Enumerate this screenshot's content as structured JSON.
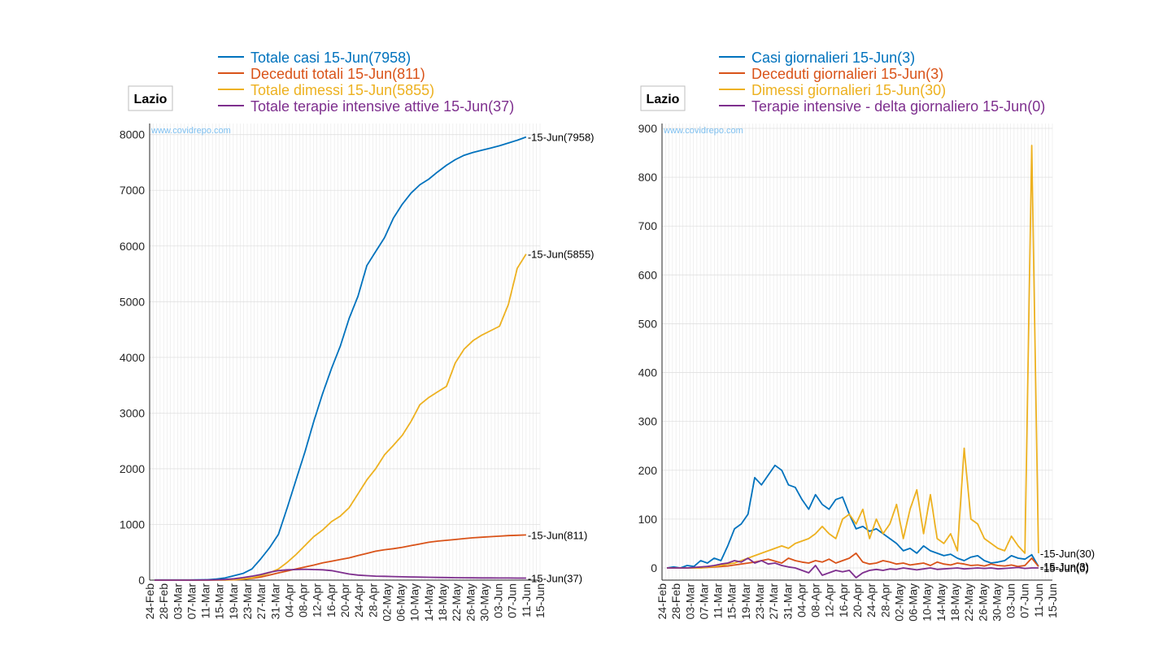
{
  "chart_data": [
    {
      "type": "line",
      "region_label": "Lazio",
      "watermark": "www.covidrepo.com",
      "ylim": [
        0,
        8200
      ],
      "yticks": [
        "0",
        "1000",
        "2000",
        "3000",
        "4000",
        "5000",
        "6000",
        "7000",
        "8000"
      ],
      "x_tick_labels": [
        "24-Feb",
        "28-Feb",
        "03-Mar",
        "07-Mar",
        "11-Mar",
        "15-Mar",
        "19-Mar",
        "23-Mar",
        "27-Mar",
        "31-Mar",
        "04-Apr",
        "08-Apr",
        "12-Apr",
        "16-Apr",
        "20-Apr",
        "24-Apr",
        "28-Apr",
        "02-May",
        "06-May",
        "10-May",
        "14-May",
        "18-May",
        "22-May",
        "26-May",
        "30-May",
        "03-Jun",
        "07-Jun",
        "11-Jun",
        "15-Jun"
      ],
      "grid": true,
      "legend_position": "top",
      "series": [
        {
          "name": "Totale casi 15-Jun(7958)",
          "color": "#0072bd",
          "end_label": "-15-Jun(7958)",
          "values": [
            3,
            3,
            3,
            3,
            3,
            5,
            8,
            20,
            40,
            80,
            120,
            200,
            380,
            580,
            820,
            1300,
            1800,
            2300,
            2850,
            3350,
            3800,
            4200,
            4700,
            5100,
            5650,
            5900,
            6150,
            6500,
            6750,
            6950,
            7100,
            7200,
            7330,
            7450,
            7550,
            7630,
            7680,
            7720,
            7760,
            7800,
            7850,
            7900,
            7958
          ]
        },
        {
          "name": "Deceduti totali 15-Jun(811)",
          "color": "#d95319",
          "end_label": "-15-Jun(811)",
          "values": [
            0,
            0,
            0,
            0,
            0,
            0,
            0,
            1,
            3,
            6,
            15,
            30,
            55,
            90,
            130,
            165,
            200,
            235,
            270,
            310,
            340,
            370,
            400,
            440,
            480,
            520,
            545,
            565,
            590,
            620,
            650,
            680,
            700,
            715,
            730,
            745,
            760,
            770,
            780,
            790,
            800,
            805,
            811
          ]
        },
        {
          "name": "Totale dimessi 15-Jun(5855)",
          "color": "#edb120",
          "end_label": "-15-Jun(5855)",
          "values": [
            0,
            0,
            0,
            0,
            0,
            0,
            0,
            2,
            5,
            10,
            20,
            40,
            80,
            130,
            200,
            320,
            460,
            620,
            780,
            900,
            1050,
            1150,
            1300,
            1550,
            1800,
            2000,
            2250,
            2420,
            2600,
            2850,
            3150,
            3280,
            3380,
            3480,
            3900,
            4150,
            4300,
            4400,
            4480,
            4560,
            4950,
            5600,
            5855
          ]
        },
        {
          "name": "Totale terapie intensive attive 15-Jun(37)",
          "color": "#7e2f8e",
          "end_label": "-15-Jun(37)",
          "values": [
            0,
            0,
            0,
            0,
            0,
            1,
            3,
            6,
            12,
            25,
            45,
            70,
            100,
            140,
            170,
            185,
            190,
            195,
            190,
            185,
            170,
            140,
            110,
            90,
            80,
            72,
            68,
            64,
            60,
            57,
            54,
            51,
            48,
            46,
            44,
            42,
            41,
            40,
            39,
            38,
            38,
            37,
            37
          ]
        }
      ]
    },
    {
      "type": "line",
      "region_label": "Lazio",
      "watermark": "www.covidrepo.com",
      "ylim": [
        -25,
        910
      ],
      "yticks": [
        "0",
        "100",
        "200",
        "300",
        "400",
        "500",
        "600",
        "700",
        "800",
        "900"
      ],
      "x_tick_labels": [
        "24-Feb",
        "28-Feb",
        "03-Mar",
        "07-Mar",
        "11-Mar",
        "15-Mar",
        "19-Mar",
        "23-Mar",
        "27-Mar",
        "31-Mar",
        "04-Apr",
        "08-Apr",
        "12-Apr",
        "16-Apr",
        "20-Apr",
        "24-Apr",
        "28-Apr",
        "02-May",
        "06-May",
        "10-May",
        "14-May",
        "18-May",
        "22-May",
        "26-May",
        "30-May",
        "03-Jun",
        "07-Jun",
        "11-Jun",
        "15-Jun"
      ],
      "grid": true,
      "legend_position": "top",
      "series": [
        {
          "name": "Casi giornalieri 15-Jun(3)",
          "color": "#0072bd",
          "end_label": "-15-Jun(3)",
          "values": [
            0,
            2,
            0,
            5,
            3,
            15,
            10,
            20,
            15,
            45,
            80,
            90,
            110,
            185,
            170,
            190,
            210,
            200,
            170,
            165,
            140,
            120,
            150,
            130,
            120,
            140,
            145,
            110,
            80,
            85,
            75,
            80,
            70,
            60,
            50,
            35,
            40,
            30,
            45,
            35,
            30,
            25,
            28,
            20,
            15,
            22,
            25,
            15,
            10,
            12,
            15,
            25,
            20,
            18,
            27,
            3
          ]
        },
        {
          "name": "Deceduti giornalieri 15-Jun(3)",
          "color": "#d95319",
          "end_label": "-15-Jun(3)",
          "values": [
            0,
            0,
            0,
            0,
            0,
            0,
            1,
            2,
            3,
            4,
            6,
            8,
            10,
            12,
            15,
            18,
            14,
            10,
            20,
            15,
            12,
            10,
            15,
            12,
            18,
            10,
            15,
            20,
            30,
            12,
            8,
            10,
            15,
            12,
            8,
            10,
            6,
            8,
            10,
            5,
            12,
            8,
            6,
            10,
            8,
            5,
            6,
            4,
            8,
            5,
            4,
            6,
            3,
            5,
            20,
            3
          ]
        },
        {
          "name": "Dimessi giornalieri 15-Jun(30)",
          "color": "#edb120",
          "end_label": "-15-Jun(30)",
          "values": [
            0,
            0,
            0,
            0,
            0,
            0,
            2,
            3,
            5,
            8,
            10,
            15,
            20,
            25,
            30,
            35,
            40,
            45,
            40,
            50,
            55,
            60,
            70,
            85,
            70,
            60,
            100,
            110,
            90,
            120,
            60,
            100,
            70,
            90,
            130,
            60,
            120,
            160,
            70,
            150,
            60,
            50,
            70,
            35,
            245,
            100,
            90,
            60,
            50,
            40,
            35,
            65,
            45,
            30,
            865,
            30
          ]
        },
        {
          "name": "Terapie intensive - delta giornaliero 15-Jun(0)",
          "color": "#7e2f8e",
          "end_label": "-15-Jun(0)",
          "values": [
            0,
            0,
            0,
            0,
            1,
            2,
            3,
            5,
            8,
            10,
            15,
            12,
            20,
            10,
            15,
            8,
            10,
            5,
            2,
            0,
            -5,
            -10,
            5,
            -15,
            -10,
            -5,
            -8,
            -5,
            -20,
            -10,
            -5,
            -3,
            -5,
            -2,
            -3,
            0,
            -2,
            -4,
            -2,
            0,
            -3,
            -2,
            -1,
            0,
            -2,
            -1,
            0,
            -1,
            0,
            -2,
            -1,
            0,
            1,
            -1,
            0,
            0
          ]
        }
      ]
    }
  ]
}
